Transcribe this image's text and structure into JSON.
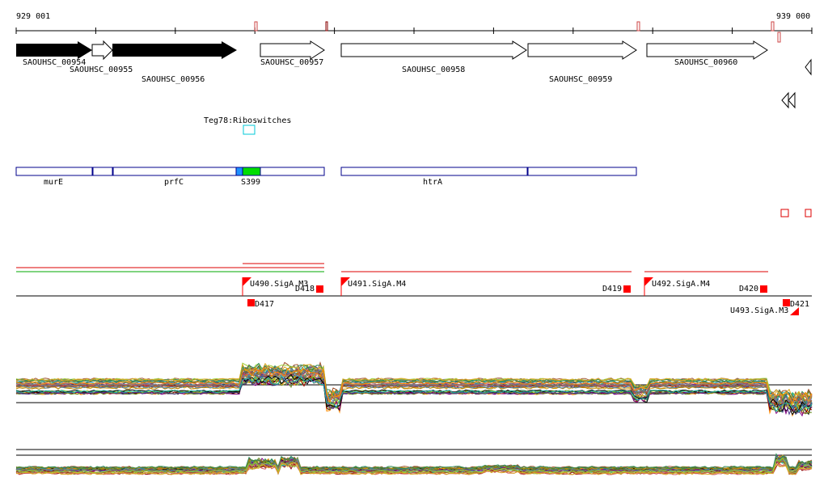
{
  "coords": {
    "start": "929 001",
    "end": "939 000"
  },
  "genes": [
    {
      "id": "SAOUHSC_00954",
      "strand": "+",
      "filled": true
    },
    {
      "id": "SAOUHSC_00955",
      "strand": "+",
      "filled": false
    },
    {
      "id": "SAOUHSC_00956",
      "strand": "+",
      "filled": true
    },
    {
      "id": "SAOUHSC_00957",
      "strand": "+",
      "filled": false
    },
    {
      "id": "SAOUHSC_00958",
      "strand": "+",
      "filled": false
    },
    {
      "id": "SAOUHSC_00959",
      "strand": "+",
      "filled": false
    },
    {
      "id": "SAOUHSC_00960",
      "strand": "+",
      "filled": false
    }
  ],
  "riboswitch": {
    "label": "Teg78:Riboswitches"
  },
  "annotations": [
    {
      "label": "murE"
    },
    {
      "label": "prfC"
    },
    {
      "label": "S399"
    },
    {
      "label": "htrA"
    }
  ],
  "promoters": [
    {
      "label": "U490.SigA.M3"
    },
    {
      "label": "U491.SigA.M4"
    },
    {
      "label": "U492.SigA.M4"
    },
    {
      "label": "U493.SigA.M3"
    }
  ],
  "terminators": [
    {
      "label": "D418"
    },
    {
      "label": "D417"
    },
    {
      "label": "D419"
    },
    {
      "label": "D420"
    },
    {
      "label": "D421"
    }
  ],
  "colors": {
    "gene_fill": "#000000",
    "annotation_border": "#00008b",
    "riboswitch": "#00c8d8",
    "green_block": "#00dd00",
    "blue_block": "#1e90ff",
    "operon_red": "#dd0000",
    "operon_green": "#00aa00",
    "signal_red": "#ff0000"
  }
}
